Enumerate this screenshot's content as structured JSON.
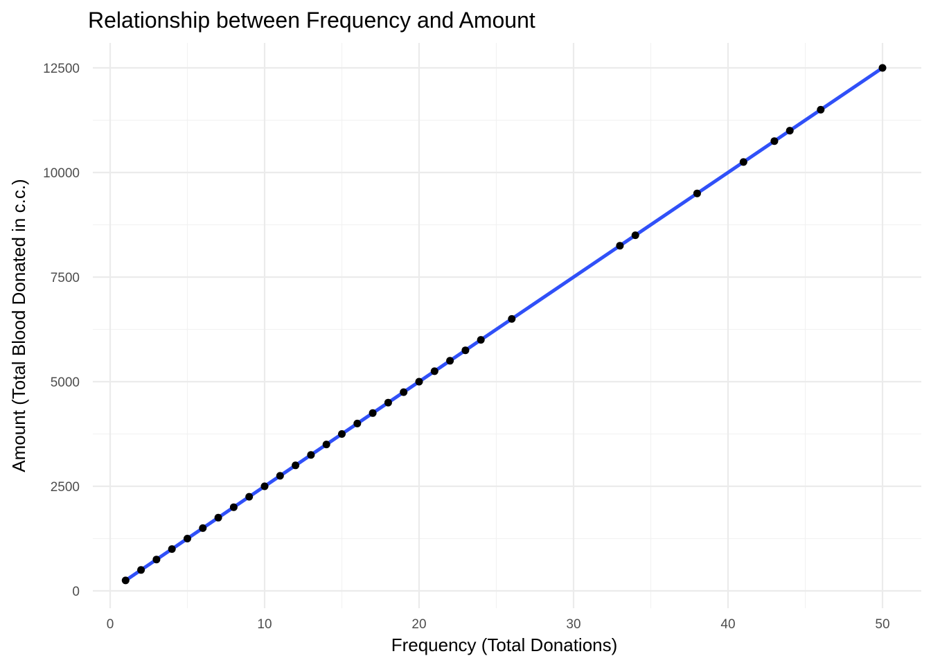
{
  "chart_data": {
    "type": "scatter",
    "title": "Relationship between Frequency and Amount",
    "xlabel": "Frequency (Total Donations)",
    "ylabel": "Amount (Total Blood Donated in c.c.)",
    "xlim": [
      0,
      50
    ],
    "ylim": [
      0,
      12500
    ],
    "x_ticks": [
      0,
      10,
      20,
      30,
      40,
      50
    ],
    "y_ticks": [
      0,
      2500,
      5000,
      7500,
      10000,
      12500
    ],
    "x_tick_labels": [
      "0",
      "10",
      "20",
      "30",
      "40",
      "50"
    ],
    "y_tick_labels": [
      "0",
      "2500",
      "5000",
      "7500",
      "10000",
      "12500"
    ],
    "grid": true,
    "legend": "none",
    "points": {
      "x": [
        1,
        2,
        3,
        4,
        5,
        6,
        7,
        8,
        9,
        10,
        11,
        12,
        13,
        14,
        15,
        16,
        17,
        18,
        19,
        20,
        21,
        22,
        23,
        24,
        26,
        33,
        34,
        38,
        41,
        43,
        44,
        46,
        50
      ],
      "y": [
        250,
        500,
        750,
        1000,
        1250,
        1500,
        1750,
        2000,
        2250,
        2500,
        2750,
        3000,
        3250,
        3500,
        3750,
        4000,
        4250,
        4500,
        4750,
        5000,
        5250,
        5500,
        5750,
        6000,
        6500,
        8250,
        8500,
        9500,
        10250,
        10750,
        11000,
        11500,
        12500
      ]
    },
    "trend_line": {
      "type": "linear",
      "x": [
        1,
        50
      ],
      "y": [
        250,
        12500
      ],
      "color": "#3050f8"
    },
    "point_color": "#000000"
  }
}
